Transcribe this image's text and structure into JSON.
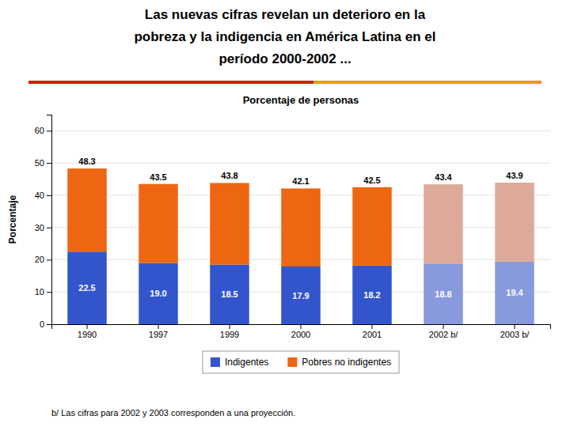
{
  "chart_data": {
    "type": "bar",
    "stacked": true,
    "title": [
      "Las nuevas cifras revelan un deterioro en la",
      "pobreza y la indigencia en América Latina en el",
      "período 2000-2002 ..."
    ],
    "subtitle": "Porcentaje de personas",
    "ylabel": "Porcentaje",
    "annotations": [
      "b/ Las cifras para 2002 y 2003 corresponden a una proyección."
    ],
    "categories": [
      "1990",
      "1997",
      "1999",
      "2000",
      "2001",
      "2002 b/",
      "2003 b/"
    ],
    "series": [
      {
        "name": "Indigentes",
        "color": "#3355cc",
        "colors": [
          "#3355cc",
          "#3355cc",
          "#3355cc",
          "#3355cc",
          "#3355cc",
          "#8899dd",
          "#8899dd"
        ],
        "values": [
          22.5,
          19.0,
          18.5,
          17.9,
          18.2,
          18.8,
          19.4
        ],
        "value_labels": [
          "22.5",
          "19.0",
          "18.5",
          "17.9",
          "18.2",
          "18.8",
          "19.4"
        ],
        "data_labels": true
      },
      {
        "name": "Pobres no indigentes",
        "color": "#ee6611",
        "colors": [
          "#ee6611",
          "#ee6611",
          "#ee6611",
          "#ee6611",
          "#ee6611",
          "#ddaa99",
          "#ddaa99"
        ],
        "values": [
          25.8,
          24.5,
          25.3,
          24.2,
          24.3,
          24.6,
          24.5
        ]
      }
    ],
    "totals": [
      48.3,
      43.5,
      43.8,
      42.1,
      42.5,
      43.4,
      43.9
    ],
    "ylim": [
      0,
      65
    ],
    "yticks": [
      0,
      10,
      20,
      30,
      40,
      50,
      60
    ],
    "grid": true,
    "legend": "bottom"
  }
}
